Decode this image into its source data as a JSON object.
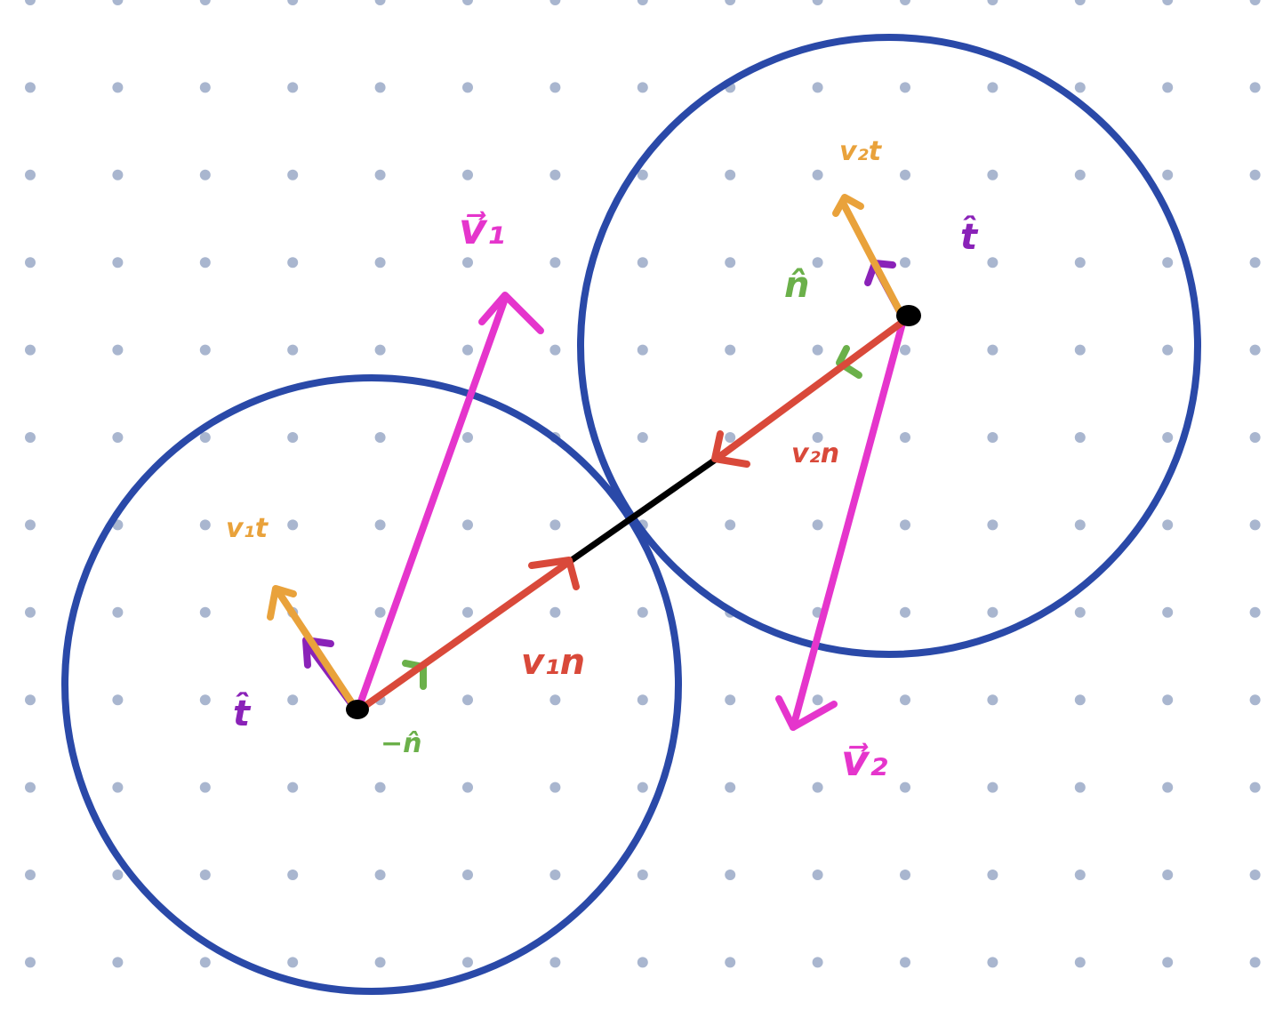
{
  "colors": {
    "background": "#ffffff",
    "grid_dot": "#a9b6cf",
    "circle": "#2a49a8",
    "velocity": "#e535cc",
    "normal_component": "#d9493a",
    "tangential_component": "#e9a23b",
    "tangent_unit": "#8a22b8",
    "normal_unit": "#6bb04a",
    "line_of_centers": "#000000"
  },
  "labels": {
    "v1_vector": "v⃗₁",
    "v2_vector": "v⃗₂",
    "v1n": "v₁n",
    "v2n": "v₂n",
    "v1t": "v₁t",
    "v2t": "v₂t",
    "t_hat_1": "t̂",
    "t_hat_2": "t̂",
    "n_hat": "n̂",
    "neg_n_hat": "−n̂"
  }
}
